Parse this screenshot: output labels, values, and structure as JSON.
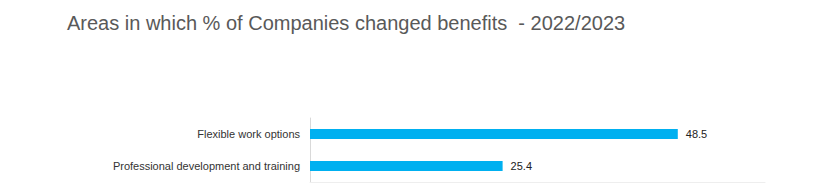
{
  "chart_data": {
    "type": "bar",
    "title": "Areas in which % of Companies changed benefits  - 2022/2023",
    "categories": [
      "Flexible work options",
      "Professional development and training"
    ],
    "values": [
      48.5,
      25.4
    ],
    "color": "#00b0f0",
    "orientation": "horizontal",
    "xlim": [
      0,
      60
    ],
    "data_labels": true,
    "tick_labels": "y",
    "grid": false
  }
}
